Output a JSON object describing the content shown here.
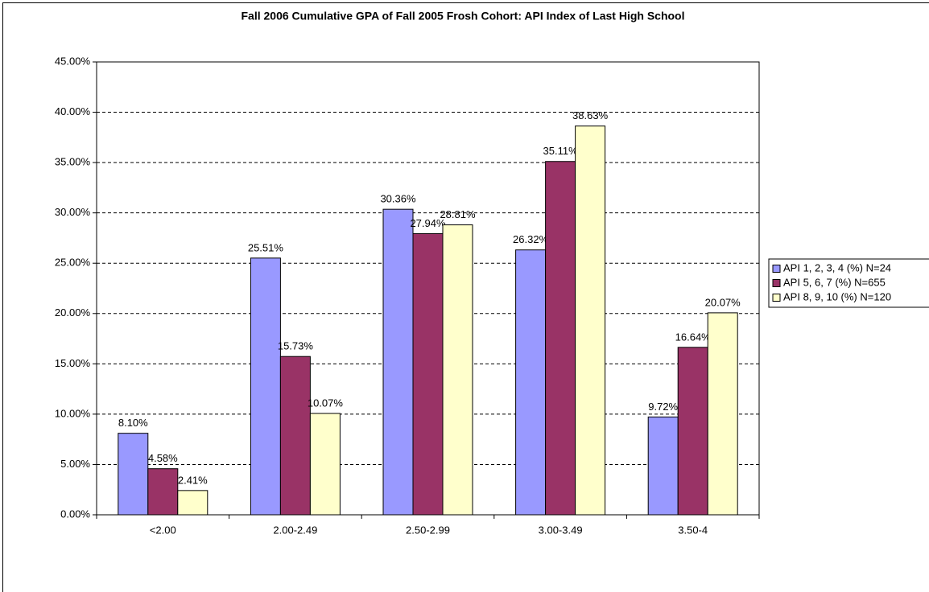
{
  "chart_data": {
    "type": "bar",
    "title": "Fall 2006 Cumulative GPA of Fall 2005 Frosh Cohort: API Index of Last High School",
    "categories": [
      "<2.00",
      "2.00-2.49",
      "2.50-2.99",
      "3.00-3.49",
      "3.50-4"
    ],
    "series": [
      {
        "name": "API 1, 2, 3, 4 (%) N=24",
        "color": "#9999ff",
        "values": [
          8.1,
          25.51,
          30.36,
          26.32,
          9.72
        ],
        "value_labels": [
          "8.10%",
          "25.51%",
          "30.36%",
          "26.32%",
          "9.72%"
        ]
      },
      {
        "name": "API 5, 6, 7 (%) N=655",
        "color": "#993366",
        "values": [
          4.58,
          15.73,
          27.94,
          35.11,
          16.64
        ],
        "value_labels": [
          "4.58%",
          "15.73%",
          "27.94%",
          "35.11%",
          "16.64%"
        ]
      },
      {
        "name": "API 8, 9, 10 (%) N=120",
        "color": "#ffffcc",
        "values": [
          2.41,
          10.07,
          28.81,
          38.63,
          20.07
        ],
        "value_labels": [
          "2.41%",
          "10.07%",
          "28.81%",
          "38.63%",
          "20.07%"
        ]
      }
    ],
    "ylim": [
      0,
      45
    ],
    "yticks": [
      {
        "value": 0,
        "label": "0.00%"
      },
      {
        "value": 5,
        "label": "5.00%"
      },
      {
        "value": 10,
        "label": "10.00%"
      },
      {
        "value": 15,
        "label": "15.00%"
      },
      {
        "value": 20,
        "label": "20.00%"
      },
      {
        "value": 25,
        "label": "25.00%"
      },
      {
        "value": 30,
        "label": "30.00%"
      },
      {
        "value": 35,
        "label": "35.00%"
      },
      {
        "value": 40,
        "label": "40.00%"
      },
      {
        "value": 45,
        "label": "45.00%"
      }
    ],
    "grid": true,
    "legend": "right"
  }
}
